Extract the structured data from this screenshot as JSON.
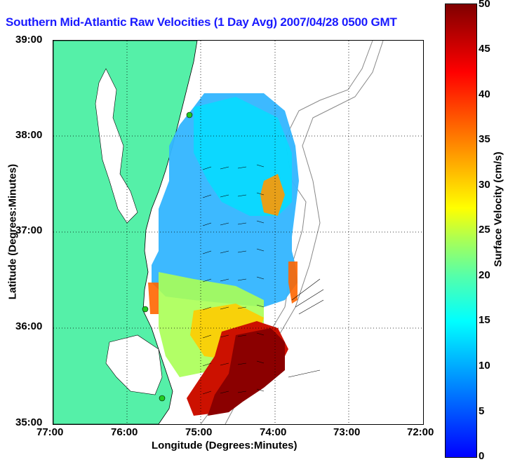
{
  "title": "Southern Mid-Atlantic Raw Velocities (1 Day Avg) 2007/04/28 0500 GMT",
  "axes": {
    "xlabel": "Longitude (Degrees:Minutes)",
    "ylabel": "Latitude (Degrees:Minutes)",
    "xticks": [
      "77:00",
      "76:00",
      "75:00",
      "74:00",
      "73:00",
      "72:00"
    ],
    "yticks": [
      "39:00",
      "38:00",
      "37:00",
      "36:00",
      "35:00"
    ]
  },
  "colorbar": {
    "label": "Surface Velocity (cm/s)",
    "ticks": [
      "50",
      "45",
      "40",
      "35",
      "30",
      "25",
      "20",
      "15",
      "10",
      "5",
      "0"
    ],
    "colors": {
      "low": "#0000ff",
      "mid": "#00ffff",
      "high": "#800000"
    }
  },
  "map": {
    "land_color": "#55f0a8",
    "grid": "dotted"
  }
}
